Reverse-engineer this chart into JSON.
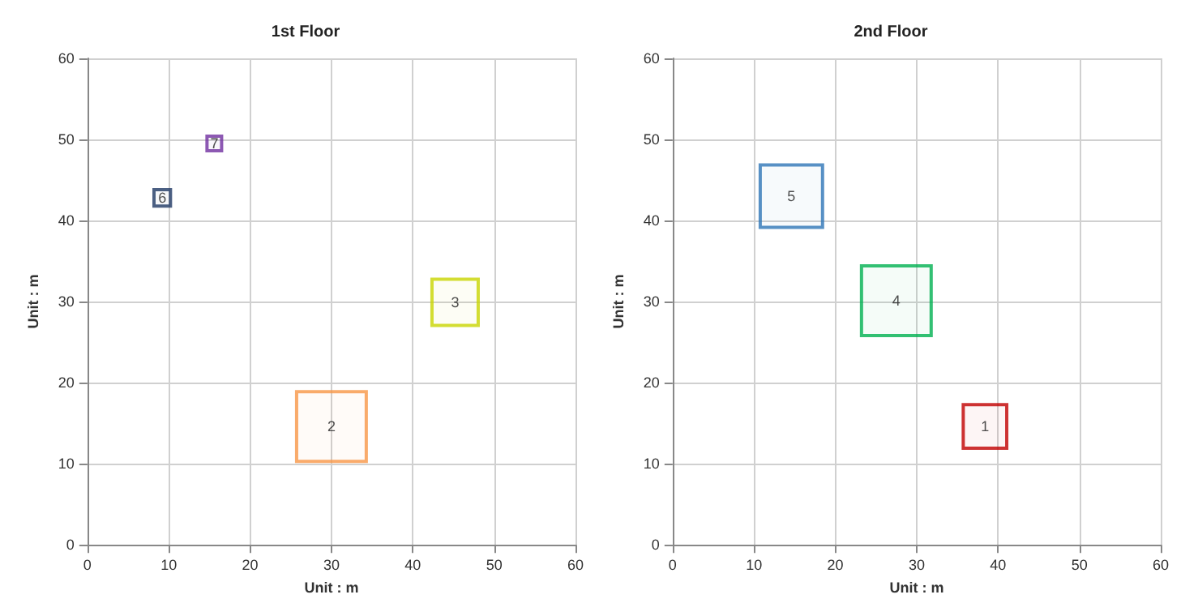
{
  "chart_data": [
    {
      "type": "bubble",
      "title": "1st Floor",
      "xlabel": "Unit : m",
      "ylabel": "Unit : m",
      "xlim": [
        0,
        60
      ],
      "ylim": [
        0,
        60
      ],
      "xticks": [
        0,
        10,
        20,
        30,
        40,
        50,
        60
      ],
      "yticks": [
        0,
        10,
        20,
        30,
        40,
        50,
        60
      ],
      "grid": true,
      "legend": false,
      "marker": "square",
      "series": [
        {
          "name": "7",
          "color": "#7030a0",
          "x": [
            15.6
          ],
          "values": [
            49.5
          ],
          "sizes": [
            0.044
          ]
        },
        {
          "name": "6",
          "color": "#1f3864",
          "x": [
            9.2
          ],
          "values": [
            42.8
          ],
          "sizes": [
            0.056
          ]
        },
        {
          "name": "3",
          "color": "#c8d400",
          "x": [
            45.2
          ],
          "values": [
            29.9
          ],
          "sizes": [
            0.44
          ]
        },
        {
          "name": "2",
          "color": "#f79646",
          "x": [
            30
          ],
          "values": [
            14.6
          ],
          "sizes": [
            1
          ]
        }
      ]
    },
    {
      "type": "bubble",
      "title": "2nd Floor",
      "xlabel": "Unit : m",
      "ylabel": "Unit : m",
      "xlim": [
        0,
        60
      ],
      "ylim": [
        0,
        60
      ],
      "xticks": [
        0,
        10,
        20,
        30,
        40,
        50,
        60
      ],
      "yticks": [
        0,
        10,
        20,
        30,
        40,
        50,
        60
      ],
      "grid": true,
      "legend": false,
      "marker": "square",
      "series": [
        {
          "name": "5",
          "color": "#2e75b6",
          "x": [
            14.6
          ],
          "values": [
            43
          ],
          "sizes": [
            0.8
          ]
        },
        {
          "name": "4",
          "color": "#00b050",
          "x": [
            27.5
          ],
          "values": [
            30.1
          ],
          "sizes": [
            1
          ]
        },
        {
          "name": "1",
          "color": "#c00000",
          "x": [
            38.4
          ],
          "values": [
            14.6
          ],
          "sizes": [
            0.39
          ]
        }
      ]
    }
  ]
}
